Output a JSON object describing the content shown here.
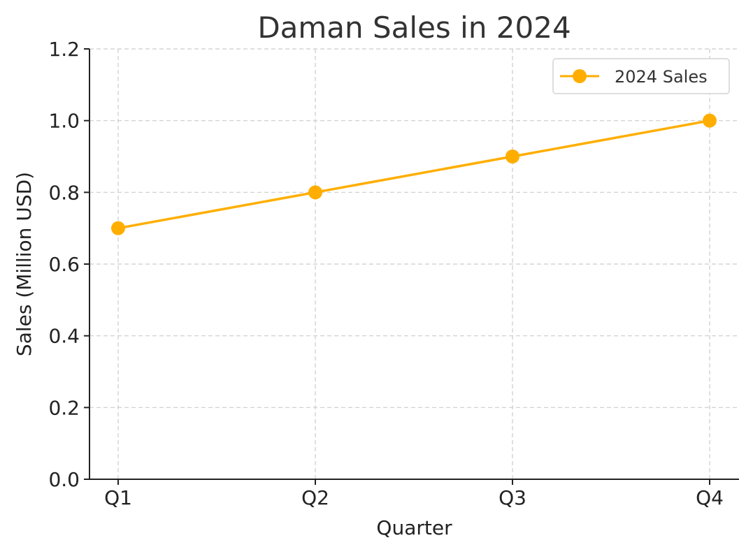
{
  "chart_data": {
    "type": "line",
    "title": "Daman Sales in 2024",
    "xlabel": "Quarter",
    "ylabel": "Sales (Million USD)",
    "categories": [
      "Q1",
      "Q2",
      "Q3",
      "Q4"
    ],
    "series": [
      {
        "name": "2024 Sales",
        "values": [
          0.7,
          0.8,
          0.9,
          1.0
        ],
        "color": "#FFAE00"
      }
    ],
    "ylim": [
      0,
      1.2
    ],
    "yticks": [
      "0.0",
      "0.2",
      "0.4",
      "0.6",
      "0.8",
      "1.0",
      "1.2"
    ],
    "grid": true,
    "legend_position": "top-right"
  }
}
